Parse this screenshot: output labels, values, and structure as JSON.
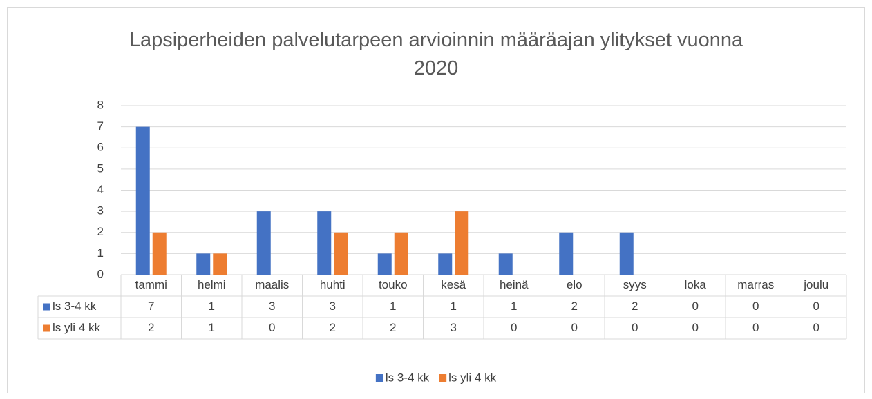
{
  "chart_data": {
    "type": "bar",
    "title": "Lapsiperheiden palvelutarpeen arvioinnin määräajan ylitykset vuonna 2020",
    "categories": [
      "tammi",
      "helmi",
      "maalis",
      "huhti",
      "touko",
      "kesä",
      "heinä",
      "elo",
      "syys",
      "loka",
      "marras",
      "joulu"
    ],
    "series": [
      {
        "name": "ls 3-4 kk",
        "color": "#4472c4",
        "values": [
          7,
          1,
          3,
          3,
          1,
          1,
          1,
          2,
          2,
          0,
          0,
          0
        ]
      },
      {
        "name": "ls yli 4 kk",
        "color": "#ed7d31",
        "values": [
          2,
          1,
          0,
          2,
          2,
          3,
          0,
          0,
          0,
          0,
          0,
          0
        ]
      }
    ],
    "ylim": [
      0,
      8
    ],
    "yticks": [
      0,
      1,
      2,
      3,
      4,
      5,
      6,
      7,
      8
    ],
    "grid": true,
    "legend": "bottom",
    "data_table": true
  }
}
